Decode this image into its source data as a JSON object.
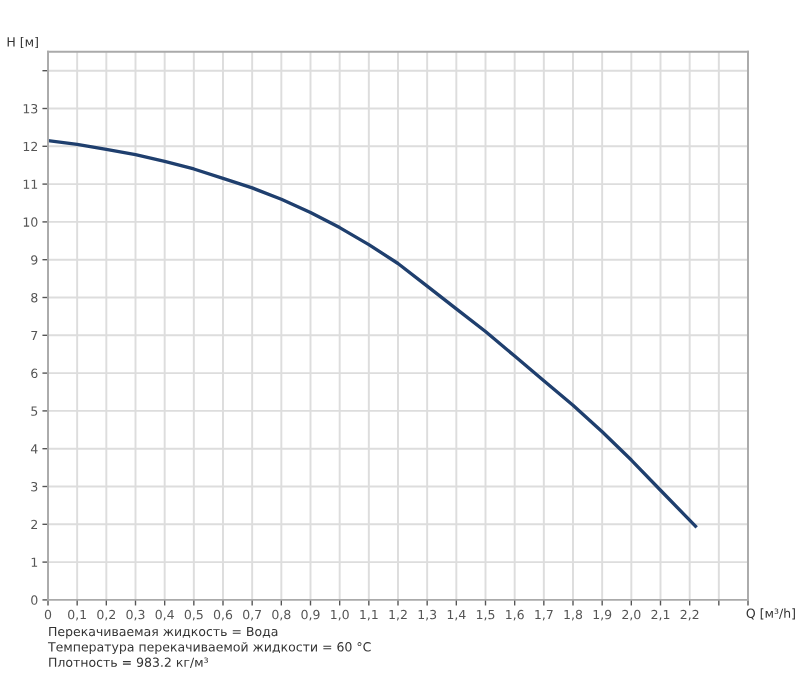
{
  "chart_data": {
    "type": "line",
    "xlabel": "Q [м³/h]",
    "ylabel": "H [м]",
    "x": [
      0,
      0.1,
      0.2,
      0.3,
      0.4,
      0.5,
      0.6,
      0.7,
      0.8,
      0.9,
      1.0,
      1.1,
      1.2,
      1.3,
      1.4,
      1.5,
      1.6,
      1.7,
      1.8,
      1.9,
      2.0,
      2.1,
      2.22
    ],
    "series": [
      {
        "color": "#1f3f6e",
        "values": [
          12.15,
          12.05,
          11.92,
          11.78,
          11.6,
          11.4,
          11.15,
          10.9,
          10.6,
          10.25,
          9.85,
          9.4,
          8.9,
          8.3,
          7.7,
          7.1,
          6.45,
          5.8,
          5.15,
          4.45,
          3.7,
          2.9,
          1.95
        ]
      }
    ],
    "xlim": [
      0,
      2.4
    ],
    "xticks": [
      {
        "value": 0,
        "label": "0"
      },
      {
        "value": 0.1,
        "label": "0,1"
      },
      {
        "value": 0.2,
        "label": "0,2"
      },
      {
        "value": 0.3,
        "label": "0,3"
      },
      {
        "value": 0.4,
        "label": "0,4"
      },
      {
        "value": 0.5,
        "label": "0,5"
      },
      {
        "value": 0.6,
        "label": "0,6"
      },
      {
        "value": 0.7,
        "label": "0,7"
      },
      {
        "value": 0.8,
        "label": "0,8"
      },
      {
        "value": 0.9,
        "label": "0,9"
      },
      {
        "value": 1.0,
        "label": "1,0"
      },
      {
        "value": 1.1,
        "label": "1,1"
      },
      {
        "value": 1.2,
        "label": "1,2"
      },
      {
        "value": 1.3,
        "label": "1,3"
      },
      {
        "value": 1.4,
        "label": "1,4"
      },
      {
        "value": 1.5,
        "label": "1,5"
      },
      {
        "value": 1.6,
        "label": "1,6"
      },
      {
        "value": 1.7,
        "label": "1,7"
      },
      {
        "value": 1.8,
        "label": "1,8"
      },
      {
        "value": 1.9,
        "label": "1,9"
      },
      {
        "value": 2.0,
        "label": "2,0"
      },
      {
        "value": 2.1,
        "label": "2,1"
      },
      {
        "value": 2.2,
        "label": "2,2"
      },
      {
        "value": 2.3,
        "label": null
      },
      {
        "value": 2.4,
        "label": null
      }
    ],
    "ylim": [
      0,
      14.5
    ],
    "yticks": [
      0,
      1,
      2,
      3,
      4,
      5,
      6,
      7,
      8,
      9,
      10,
      11,
      12,
      13,
      {
        "value": 14,
        "label": null
      }
    ],
    "grid": true,
    "legend": false,
    "marker": "none",
    "line_style": "solid",
    "annotations": [
      "Перекачиваемая жидкость = Вода",
      "Температура перекачиваемой жидкости = 60 °C",
      "Плотность = 983.2 кг/м³"
    ]
  }
}
